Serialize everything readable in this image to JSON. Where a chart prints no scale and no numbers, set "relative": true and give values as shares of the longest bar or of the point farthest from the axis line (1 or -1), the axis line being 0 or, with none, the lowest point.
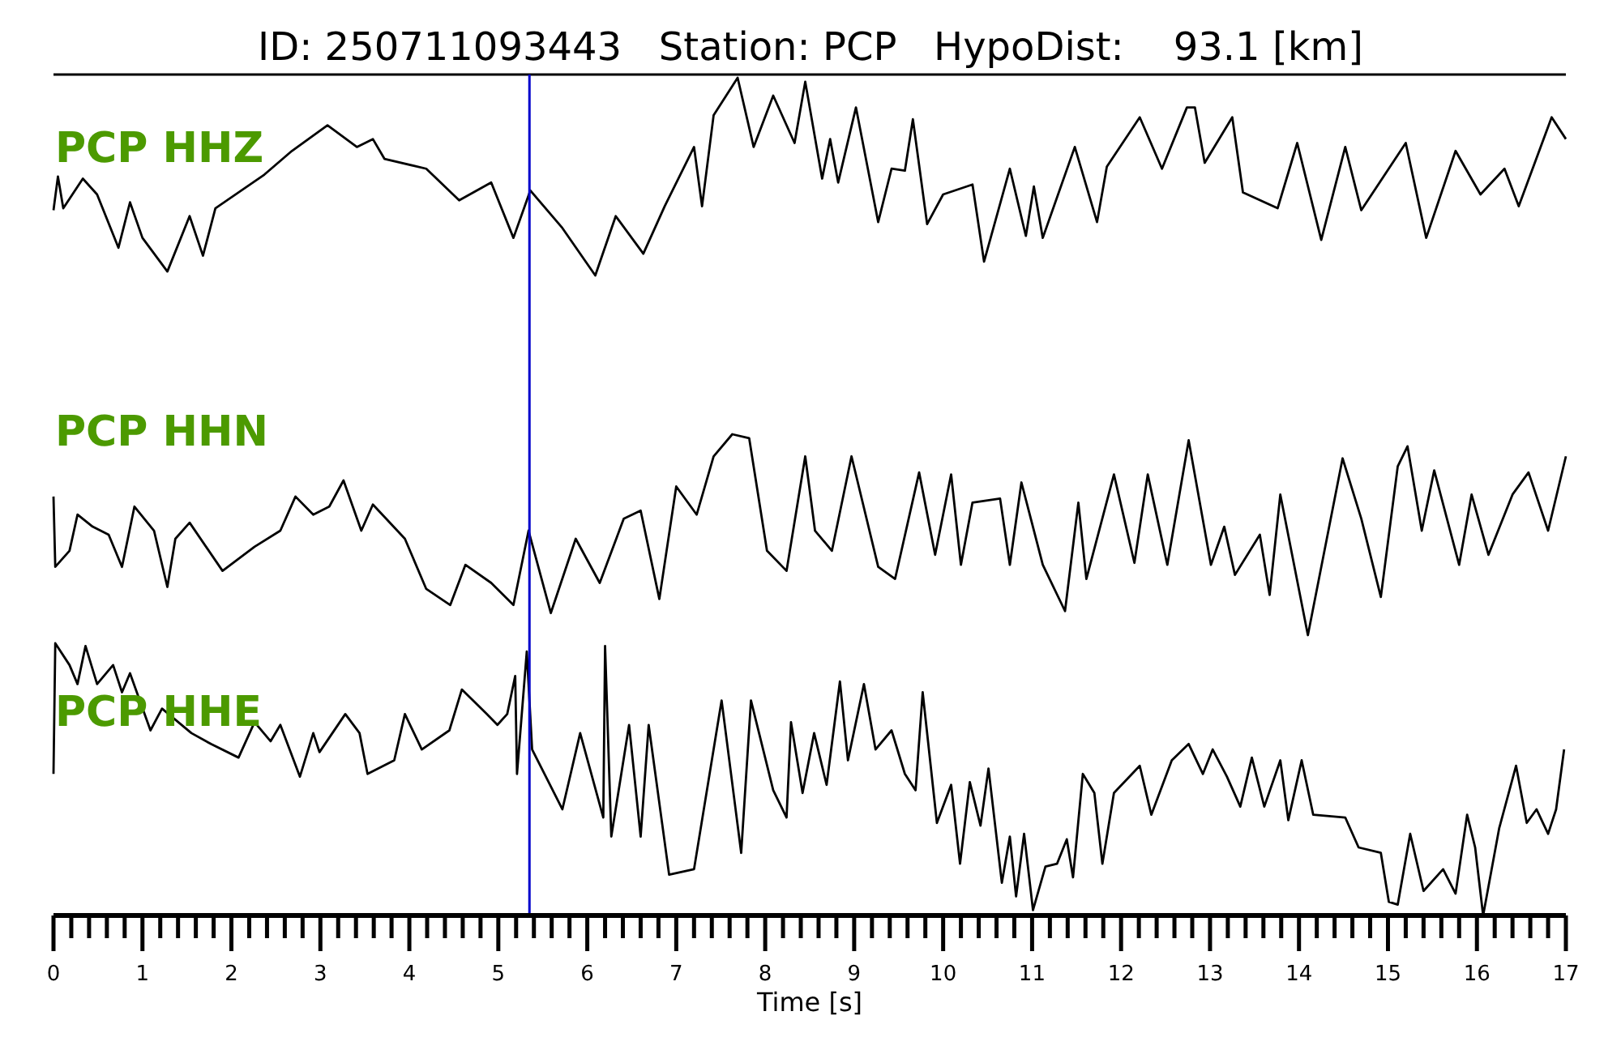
{
  "chart_data": [
    {
      "type": "line",
      "relative": true,
      "title": "ID: 250711093443   Station: PCP   HypoDist:    93.1 [km]",
      "annotations": [
        "PCP HHZ"
      ],
      "xlim": [
        0,
        17
      ],
      "tick_labels": false,
      "ref_lines": [
        {
          "axis": "x",
          "value": 5.35,
          "color": "#0000cc"
        }
      ],
      "series": [
        {
          "color": "#000000",
          "x": [
            0,
            0.05,
            0.11,
            0.33,
            0.49,
            0.73,
            0.86,
            1.0,
            1.28,
            1.53,
            1.68,
            1.82,
            2.37,
            2.68,
            3.08,
            3.41,
            3.59,
            3.72,
            4.19,
            4.56,
            4.92,
            5.17,
            5.36,
            5.72,
            6.09,
            6.32,
            6.63,
            6.87,
            7.2,
            7.29,
            7.42,
            7.69,
            7.87,
            8.09,
            8.33,
            8.45,
            8.64,
            8.73,
            8.82,
            9.02,
            9.27,
            9.42,
            9.57,
            9.66,
            9.82,
            10.0,
            10.33,
            10.46,
            10.75,
            10.93,
            11.02,
            11.12,
            11.48,
            11.73,
            11.84,
            12.21,
            12.46,
            12.74,
            12.83,
            12.94,
            13.25,
            13.37,
            13.76,
            13.98,
            14.25,
            14.52,
            14.7,
            15.2,
            15.43,
            15.76,
            16.04,
            16.31,
            16.47,
            16.84,
            17.0
          ],
          "values": [
            0.33,
            0.5,
            0.34,
            0.49,
            0.41,
            0.14,
            0.37,
            0.19,
            0.02,
            0.3,
            0.1,
            0.34,
            0.51,
            0.63,
            0.76,
            0.65,
            0.69,
            0.59,
            0.54,
            0.38,
            0.47,
            0.19,
            0.43,
            0.24,
            0,
            0.3,
            0.11,
            0.35,
            0.65,
            0.35,
            0.81,
            1.0,
            0.65,
            0.91,
            0.67,
            0.98,
            0.49,
            0.69,
            0.47,
            0.85,
            0.27,
            0.54,
            0.53,
            0.79,
            0.26,
            0.41,
            0.46,
            0.07,
            0.54,
            0.2,
            0.45,
            0.19,
            0.65,
            0.27,
            0.55,
            0.8,
            0.54,
            0.85,
            0.85,
            0.57,
            0.8,
            0.42,
            0.34,
            0.67,
            0.18,
            0.65,
            0.33,
            0.67,
            0.19,
            0.63,
            0.41,
            0.54,
            0.35,
            0.8,
            0.69
          ]
        }
      ]
    },
    {
      "type": "line",
      "relative": true,
      "annotations": [
        "PCP HHN"
      ],
      "xlim": [
        0,
        17
      ],
      "tick_labels": false,
      "ref_lines": [
        {
          "axis": "x",
          "value": 5.35,
          "color": "#0000cc"
        }
      ],
      "series": [
        {
          "color": "#000000",
          "x": [
            0,
            0.02,
            0.18,
            0.27,
            0.44,
            0.62,
            0.77,
            0.91,
            1.13,
            1.28,
            1.37,
            1.53,
            1.9,
            2.26,
            2.55,
            2.72,
            2.92,
            3.1,
            3.26,
            3.46,
            3.59,
            3.95,
            4.19,
            4.46,
            4.63,
            4.92,
            5.17,
            5.34,
            5.59,
            5.87,
            6.14,
            6.41,
            6.6,
            6.81,
            7.0,
            7.23,
            7.42,
            7.63,
            7.82,
            8.02,
            8.24,
            8.45,
            8.56,
            8.75,
            8.97,
            9.27,
            9.46,
            9.73,
            9.91,
            10.09,
            10.2,
            10.33,
            10.64,
            10.75,
            10.88,
            11.12,
            11.37,
            11.52,
            11.61,
            11.92,
            12.15,
            12.3,
            12.52,
            12.76,
            13.01,
            13.16,
            13.28,
            13.56,
            13.67,
            13.79,
            14.1,
            14.49,
            14.7,
            14.92,
            15.11,
            15.22,
            15.38,
            15.52,
            15.8,
            15.94,
            16.13,
            16.4,
            16.58,
            16.8,
            17.0
          ],
          "values": [
            0.69,
            0.34,
            0.42,
            0.6,
            0.54,
            0.5,
            0.34,
            0.64,
            0.52,
            0.24,
            0.48,
            0.56,
            0.32,
            0.44,
            0.52,
            0.69,
            0.6,
            0.64,
            0.77,
            0.52,
            0.65,
            0.48,
            0.23,
            0.15,
            0.35,
            0.26,
            0.15,
            0.52,
            0.11,
            0.48,
            0.26,
            0.58,
            0.62,
            0.18,
            0.74,
            0.6,
            0.89,
            1.0,
            0.98,
            0.42,
            0.32,
            0.89,
            0.52,
            0.42,
            0.89,
            0.34,
            0.28,
            0.81,
            0.4,
            0.8,
            0.35,
            0.66,
            0.68,
            0.35,
            0.76,
            0.35,
            0.12,
            0.66,
            0.28,
            0.8,
            0.36,
            0.8,
            0.35,
            0.97,
            0.35,
            0.54,
            0.3,
            0.5,
            0.2,
            0.7,
            0,
            0.88,
            0.58,
            0.19,
            0.84,
            0.94,
            0.52,
            0.82,
            0.35,
            0.7,
            0.4,
            0.7,
            0.81,
            0.52,
            0.89
          ]
        }
      ]
    },
    {
      "type": "line",
      "relative": true,
      "annotations": [
        "PCP HHE"
      ],
      "xlabel": "Time [s]",
      "xlim": [
        0,
        17
      ],
      "tick_labels": "x",
      "ref_lines": [
        {
          "axis": "x",
          "value": 5.35,
          "color": "#0000cc"
        }
      ],
      "xticks": [
        0,
        {
          "value": 0.2,
          "label": null
        },
        {
          "value": 0.4,
          "label": null
        },
        {
          "value": 0.6,
          "label": null
        },
        {
          "value": 0.8,
          "label": null
        },
        1,
        {
          "value": 1.2,
          "label": null
        },
        {
          "value": 1.4,
          "label": null
        },
        {
          "value": 1.6,
          "label": null
        },
        {
          "value": 1.8,
          "label": null
        },
        2,
        {
          "value": 2.2,
          "label": null
        },
        {
          "value": 2.4,
          "label": null
        },
        {
          "value": 2.6,
          "label": null
        },
        {
          "value": 2.8,
          "label": null
        },
        3,
        {
          "value": 3.2,
          "label": null
        },
        {
          "value": 3.4,
          "label": null
        },
        {
          "value": 3.6,
          "label": null
        },
        {
          "value": 3.8,
          "label": null
        },
        4,
        {
          "value": 4.2,
          "label": null
        },
        {
          "value": 4.4,
          "label": null
        },
        {
          "value": 4.6,
          "label": null
        },
        {
          "value": 4.8,
          "label": null
        },
        5,
        {
          "value": 5.2,
          "label": null
        },
        {
          "value": 5.4,
          "label": null
        },
        {
          "value": 5.6,
          "label": null
        },
        {
          "value": 5.8,
          "label": null
        },
        6,
        {
          "value": 6.2,
          "label": null
        },
        {
          "value": 6.4,
          "label": null
        },
        {
          "value": 6.6,
          "label": null
        },
        {
          "value": 6.8,
          "label": null
        },
        7,
        {
          "value": 7.2,
          "label": null
        },
        {
          "value": 7.4,
          "label": null
        },
        {
          "value": 7.6,
          "label": null
        },
        {
          "value": 7.8,
          "label": null
        },
        8,
        {
          "value": 8.2,
          "label": null
        },
        {
          "value": 8.4,
          "label": null
        },
        {
          "value": 8.6,
          "label": null
        },
        {
          "value": 8.8,
          "label": null
        },
        9,
        {
          "value": 9.2,
          "label": null
        },
        {
          "value": 9.4,
          "label": null
        },
        {
          "value": 9.6,
          "label": null
        },
        {
          "value": 9.8,
          "label": null
        },
        10,
        {
          "value": 10.2,
          "label": null
        },
        {
          "value": 10.4,
          "label": null
        },
        {
          "value": 10.6,
          "label": null
        },
        {
          "value": 10.8,
          "label": null
        },
        11,
        {
          "value": 11.2,
          "label": null
        },
        {
          "value": 11.4,
          "label": null
        },
        {
          "value": 11.6,
          "label": null
        },
        {
          "value": 11.8,
          "label": null
        },
        12,
        {
          "value": 12.2,
          "label": null
        },
        {
          "value": 12.4,
          "label": null
        },
        {
          "value": 12.6,
          "label": null
        },
        {
          "value": 12.8,
          "label": null
        },
        13,
        {
          "value": 13.2,
          "label": null
        },
        {
          "value": 13.4,
          "label": null
        },
        {
          "value": 13.6,
          "label": null
        },
        {
          "value": 13.8,
          "label": null
        },
        14,
        {
          "value": 14.2,
          "label": null
        },
        {
          "value": 14.4,
          "label": null
        },
        {
          "value": 14.6,
          "label": null
        },
        {
          "value": 14.8,
          "label": null
        },
        15,
        {
          "value": 15.2,
          "label": null
        },
        {
          "value": 15.4,
          "label": null
        },
        {
          "value": 15.6,
          "label": null
        },
        {
          "value": 15.8,
          "label": null
        },
        16,
        {
          "value": 16.2,
          "label": null
        },
        {
          "value": 16.4,
          "label": null
        },
        {
          "value": 16.6,
          "label": null
        },
        {
          "value": 16.8,
          "label": null
        },
        17
      ],
      "series": [
        {
          "color": "#000000",
          "x": [
            0,
            0.02,
            0.18,
            0.27,
            0.36,
            0.49,
            0.67,
            0.77,
            0.86,
            1.09,
            1.22,
            1.55,
            1.77,
            2.08,
            2.26,
            2.44,
            2.55,
            2.77,
            2.92,
            2.99,
            3.28,
            3.44,
            3.53,
            3.83,
            3.95,
            4.14,
            4.45,
            4.59,
            4.87,
            4.99,
            5.1,
            5.19,
            5.21,
            5.32,
            5.38,
            5.72,
            5.92,
            6.18,
            6.2,
            6.27,
            6.47,
            6.6,
            6.69,
            6.92,
            7.2,
            7.51,
            7.73,
            7.84,
            8.09,
            8.24,
            8.29,
            8.42,
            8.55,
            8.69,
            8.84,
            8.93,
            9.11,
            9.24,
            9.42,
            9.57,
            9.69,
            9.77,
            9.93,
            10.09,
            10.19,
            10.3,
            10.42,
            10.51,
            10.66,
            10.75,
            10.82,
            10.91,
            11.01,
            11.15,
            11.28,
            11.39,
            11.46,
            11.57,
            11.7,
            11.79,
            11.92,
            12.21,
            12.34,
            12.57,
            12.76,
            12.92,
            13.03,
            13.19,
            13.34,
            13.47,
            13.61,
            13.79,
            13.88,
            14.03,
            14.16,
            14.52,
            14.67,
            14.92,
            15.01,
            15.11,
            15.25,
            15.4,
            15.62,
            15.76,
            15.89,
            15.98,
            16.07,
            16.25,
            16.44,
            16.56,
            16.67,
            16.8,
            16.89,
            16.98
          ],
          "values": [
            0.52,
            1.0,
            0.92,
            0.85,
            0.99,
            0.85,
            0.92,
            0.82,
            0.89,
            0.68,
            0.76,
            0.67,
            0.63,
            0.58,
            0.71,
            0.64,
            0.7,
            0.51,
            0.67,
            0.6,
            0.74,
            0.67,
            0.52,
            0.57,
            0.74,
            0.61,
            0.68,
            0.83,
            0.74,
            0.7,
            0.74,
            0.88,
            0.52,
            0.97,
            0.61,
            0.39,
            0.67,
            0.36,
            0.99,
            0.29,
            0.7,
            0.29,
            0.7,
            0.15,
            0.17,
            0.79,
            0.23,
            0.79,
            0.46,
            0.36,
            0.71,
            0.45,
            0.67,
            0.48,
            0.86,
            0.57,
            0.85,
            0.61,
            0.68,
            0.52,
            0.46,
            0.82,
            0.34,
            0.48,
            0.19,
            0.49,
            0.33,
            0.54,
            0.12,
            0.29,
            0.07,
            0.3,
            0.02,
            0.18,
            0.19,
            0.28,
            0.14,
            0.52,
            0.45,
            0.19,
            0.45,
            0.55,
            0.37,
            0.57,
            0.63,
            0.52,
            0.61,
            0.51,
            0.4,
            0.58,
            0.4,
            0.57,
            0.35,
            0.57,
            0.37,
            0.36,
            0.25,
            0.23,
            0.05,
            0.04,
            0.3,
            0.09,
            0.17,
            0.08,
            0.37,
            0.25,
            0,
            0.32,
            0.55,
            0.34,
            0.39,
            0.3,
            0.39,
            0.61
          ]
        }
      ]
    }
  ]
}
